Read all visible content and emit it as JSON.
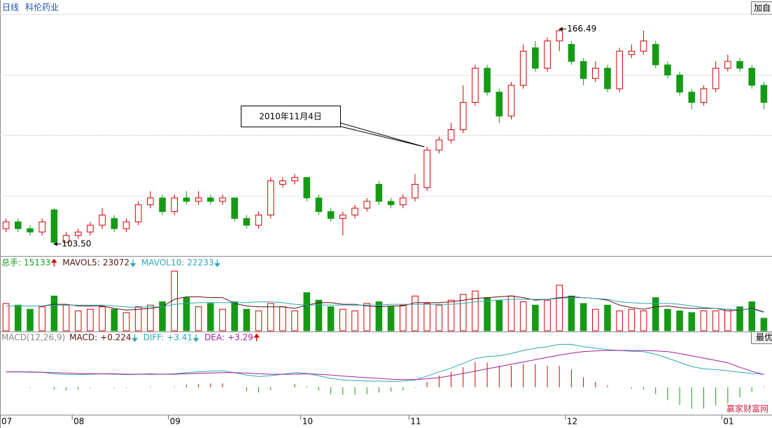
{
  "header": {
    "period": "日线",
    "name": "科伦药业",
    "button": "加自"
  },
  "chart_data": {
    "type": "candlestick",
    "categories": [
      "07",
      null,
      null,
      null,
      null,
      null,
      "08",
      null,
      null,
      null,
      null,
      null,
      null,
      null,
      "09",
      null,
      null,
      null,
      null,
      null,
      null,
      null,
      null,
      null,
      null,
      "10",
      null,
      null,
      null,
      null,
      null,
      null,
      null,
      null,
      "11",
      null,
      null,
      null,
      null,
      null,
      null,
      null,
      null,
      null,
      null,
      null,
      null,
      "12",
      null,
      null,
      null,
      null,
      null,
      null,
      null,
      null,
      null,
      null,
      null,
      null,
      "01",
      null,
      null,
      null
    ],
    "open": [
      108,
      110,
      108,
      107,
      113.5,
      104,
      106,
      107,
      109,
      111,
      108,
      110,
      115,
      117,
      113,
      117,
      116,
      117,
      116,
      117,
      111,
      109,
      112,
      121,
      122,
      123,
      117,
      113,
      111,
      112,
      114,
      121,
      116,
      115,
      117,
      120,
      131,
      134,
      137,
      145,
      155,
      148,
      141,
      150,
      161,
      155,
      163,
      162,
      157,
      152,
      155,
      149,
      159,
      160,
      162,
      156,
      153,
      148,
      145,
      149,
      155,
      157,
      155,
      150
    ],
    "high": [
      111,
      111,
      109,
      111,
      114,
      107,
      108,
      110,
      114,
      112,
      111,
      116,
      119,
      118,
      118,
      119,
      119,
      118,
      118,
      117,
      112,
      113,
      123,
      123,
      124,
      123,
      118,
      114,
      113,
      115,
      117,
      122,
      117,
      118,
      124,
      132,
      135,
      139,
      150,
      156,
      156,
      149,
      151,
      162,
      163,
      164,
      166.49,
      163,
      158,
      157,
      156,
      161,
      162,
      166,
      163,
      157,
      154,
      149,
      150,
      157,
      159,
      158,
      156,
      151
    ],
    "low": [
      107,
      107,
      106,
      106,
      103.5,
      104,
      105,
      106,
      108,
      107,
      107,
      109,
      114,
      112,
      112,
      115,
      115,
      115,
      115,
      110,
      108,
      108,
      111,
      120,
      121,
      116,
      112,
      110,
      106,
      111,
      113,
      115,
      114,
      114,
      116,
      119,
      130,
      133,
      136,
      144,
      147,
      139,
      140,
      149,
      154,
      154,
      160,
      156,
      150,
      151,
      148,
      148,
      158,
      159,
      155,
      152,
      147,
      143,
      144,
      148,
      154,
      154,
      149,
      143
    ],
    "close": [
      110,
      108,
      107,
      110,
      104,
      106,
      107,
      109,
      112,
      108,
      110,
      115,
      117,
      113,
      117,
      116,
      117,
      116,
      117,
      111,
      109,
      112,
      122,
      122,
      123,
      117,
      113,
      111,
      112,
      114,
      116,
      116,
      115,
      117,
      121,
      131,
      134,
      137,
      145,
      155,
      148,
      141,
      150,
      160,
      155,
      163,
      166,
      157,
      152,
      155,
      149,
      160,
      160,
      163,
      156,
      153,
      148,
      145,
      149,
      155,
      157,
      155,
      150,
      145
    ],
    "ylim": [
      100,
      175
    ],
    "ygrid": [
      170.9,
      153.1,
      135.5,
      117.6
    ],
    "high_label": "166.49",
    "low_label": "103.50",
    "annotation": "2010年11月4日",
    "colors": {
      "up": "#d40000",
      "down": "#169a16"
    },
    "volume": {
      "header": [
        {
          "label": "总手:",
          "value": 15133,
          "trend": "up"
        },
        {
          "label": "MAVOL5:",
          "value": 23072,
          "trend": "down"
        },
        {
          "label": "MAVOL10:",
          "value": 22233,
          "trend": "down"
        }
      ],
      "values": [
        33000,
        31000,
        26000,
        29000,
        42000,
        31000,
        24000,
        26000,
        29000,
        26000,
        22000,
        29000,
        31000,
        35000,
        72000,
        40000,
        29000,
        33000,
        26000,
        35000,
        26000,
        24000,
        33000,
        29000,
        24000,
        46000,
        37000,
        29000,
        26000,
        24000,
        33000,
        35000,
        29000,
        31000,
        42000,
        33000,
        31000,
        37000,
        44000,
        48000,
        40000,
        37000,
        42000,
        35000,
        31000,
        37000,
        55000,
        42000,
        33000,
        26000,
        31000,
        24000,
        26000,
        24000,
        40000,
        26000,
        24000,
        22000,
        24000,
        24000,
        26000,
        29000,
        35000,
        15133
      ],
      "ma5": [
        30000,
        30000,
        30000,
        30000,
        32000,
        32000,
        30000,
        30000,
        30000,
        27000,
        25000,
        26000,
        27000,
        29000,
        38000,
        41000,
        41000,
        40000,
        40000,
        33000,
        30000,
        29000,
        29000,
        29000,
        27000,
        31000,
        34000,
        34000,
        32000,
        32000,
        30000,
        29000,
        30000,
        30000,
        34000,
        34000,
        34000,
        35000,
        37000,
        39000,
        40000,
        41000,
        42000,
        40000,
        37000,
        38000,
        40000,
        41000,
        40000,
        39000,
        37000,
        31000,
        28000,
        26000,
        29000,
        30000,
        28000,
        27000,
        27000,
        27000,
        24000,
        25000,
        27000,
        23072
      ],
      "ma10": [
        30000,
        30000,
        30000,
        30000,
        31000,
        31000,
        31000,
        31000,
        31000,
        30000,
        29000,
        28000,
        29000,
        29000,
        32000,
        33000,
        34000,
        34000,
        34000,
        34000,
        34000,
        35000,
        35000,
        34000,
        32000,
        31000,
        31000,
        31000,
        31000,
        31000,
        31000,
        31000,
        32000,
        32000,
        32000,
        32000,
        32000,
        32000,
        33000,
        35000,
        36000,
        37000,
        38000,
        38000,
        38000,
        38000,
        39000,
        40000,
        40000,
        39000,
        38000,
        35000,
        34000,
        33000,
        33000,
        33000,
        32000,
        30000,
        28000,
        27000,
        26000,
        26000,
        26000,
        22233
      ],
      "ylim": [
        0,
        76000
      ],
      "ma_colors": [
        "#5a1010",
        "#2aa7b5"
      ]
    },
    "macd": {
      "title": "MACD(12,26,9)",
      "header": [
        {
          "label": "MACD:",
          "value": 0.224,
          "value_label": "+0.224",
          "trend": "down"
        },
        {
          "label": "DIFF:",
          "value": 3.41,
          "value_label": "+3.41",
          "trend": "down"
        },
        {
          "label": "DEA:",
          "value": 3.29,
          "value_label": "+3.29",
          "trend": "up"
        }
      ],
      "diff": [
        4.0,
        4.0,
        3.9,
        3.9,
        3.5,
        3.3,
        3.3,
        3.4,
        3.5,
        3.4,
        3.3,
        3.4,
        3.5,
        3.4,
        3.5,
        3.8,
        4.0,
        4.2,
        4.3,
        3.8,
        3.2,
        2.8,
        3.0,
        3.4,
        3.8,
        3.6,
        3.0,
        2.3,
        1.9,
        1.7,
        1.6,
        1.6,
        1.5,
        1.6,
        1.9,
        2.9,
        4.0,
        5.0,
        6.2,
        7.5,
        8.0,
        8.2,
        8.8,
        9.6,
        10.2,
        10.6,
        11.2,
        11.2,
        10.6,
        10.2,
        9.8,
        9.6,
        9.4,
        9.3,
        8.6,
        7.6,
        6.5,
        5.4,
        4.8,
        4.6,
        4.3,
        3.9,
        3.6,
        3.41
      ],
      "dea": [
        4.0,
        4.0,
        4.0,
        3.9,
        3.8,
        3.7,
        3.6,
        3.5,
        3.5,
        3.5,
        3.4,
        3.4,
        3.4,
        3.4,
        3.4,
        3.5,
        3.6,
        3.7,
        3.8,
        3.8,
        3.7,
        3.5,
        3.4,
        3.4,
        3.4,
        3.5,
        3.4,
        3.2,
        2.9,
        2.7,
        2.5,
        2.3,
        2.1,
        2.0,
        2.0,
        2.2,
        2.5,
        3.0,
        3.6,
        4.2,
        4.8,
        5.4,
        6.0,
        6.6,
        7.2,
        7.8,
        8.4,
        8.9,
        9.3,
        9.5,
        9.6,
        9.6,
        9.6,
        9.6,
        9.5,
        9.3,
        8.8,
        8.2,
        7.6,
        7.0,
        6.4,
        5.2,
        4.2,
        3.29
      ],
      "hist": [
        0,
        0,
        -0.2,
        0,
        -0.6,
        -0.8,
        -0.6,
        -0.2,
        0,
        -0.2,
        -0.2,
        0,
        0.2,
        0,
        0.2,
        0.6,
        0.8,
        1.0,
        1.0,
        0,
        -1.0,
        -1.4,
        -0.8,
        0,
        0.8,
        0.2,
        -0.8,
        -1.8,
        -2.0,
        -2.0,
        -1.8,
        -1.4,
        -1.2,
        -0.8,
        -0.2,
        1.4,
        3.0,
        4.0,
        5.2,
        6.6,
        6.4,
        5.6,
        5.6,
        6.0,
        6.0,
        5.6,
        5.6,
        4.6,
        2.6,
        1.4,
        0.4,
        0,
        -0.4,
        -0.6,
        -1.8,
        -3.4,
        -4.6,
        -5.6,
        -5.6,
        -4.8,
        -4.2,
        -2.6,
        -1.2,
        0.224
      ],
      "ylim": [
        -7,
        12
      ],
      "colors": {
        "diff": "#2aa7b5",
        "dea": "#a0209a"
      },
      "button": "最优"
    },
    "watermark": "赢家财富网"
  }
}
